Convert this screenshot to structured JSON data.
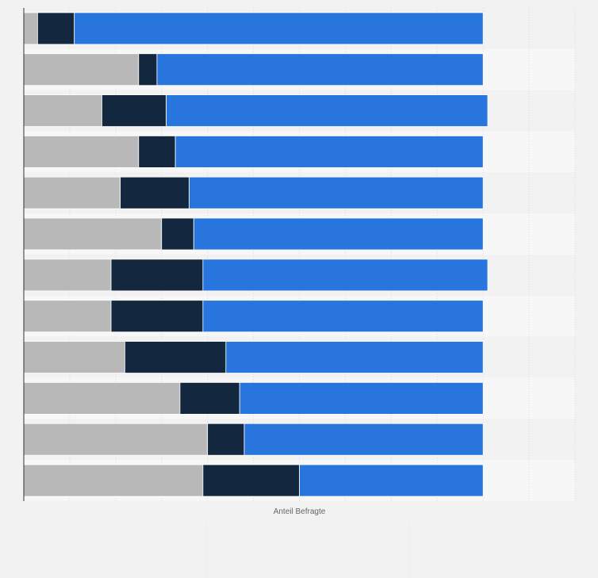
{
  "colors": {
    "page_background": "#f2f2f2",
    "band_light": "#f7f7f7",
    "band_dark": "#f2f2f2",
    "gridline": "#dddddd",
    "axis": "#333333"
  },
  "chart_data": {
    "type": "bar",
    "orientation": "horizontal",
    "stacked": true,
    "title": "",
    "xlabel": "Anteil Befragte",
    "ylabel": "",
    "xlim": [
      0,
      120
    ],
    "grid": true,
    "legend": "none",
    "category_count": 12,
    "series": [
      {
        "color": "#b8b8b8",
        "values": [
          3,
          25,
          17,
          25,
          21,
          30,
          19,
          19,
          22,
          34,
          40,
          39
        ]
      },
      {
        "color": "#13283f",
        "values": [
          8,
          4,
          14,
          8,
          15,
          7,
          20,
          20,
          22,
          13,
          8,
          21
        ]
      },
      {
        "color": "#2775dd",
        "values": [
          89,
          71,
          70,
          67,
          64,
          63,
          62,
          61,
          56,
          53,
          52,
          40
        ]
      }
    ]
  }
}
